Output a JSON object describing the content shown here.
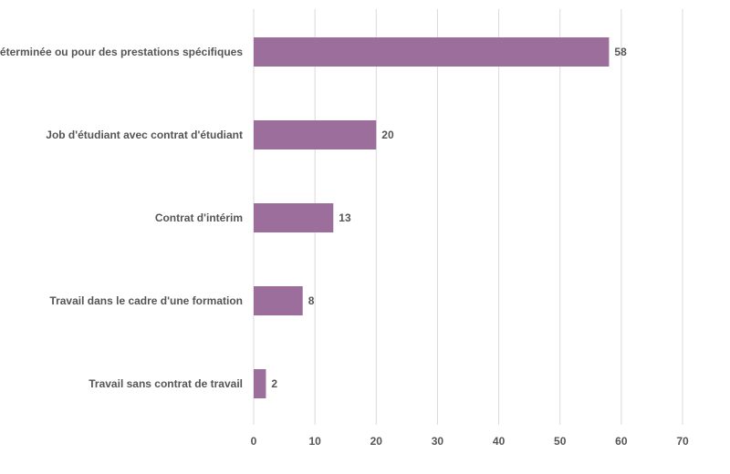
{
  "chart_data": {
    "type": "bar",
    "orientation": "horizontal",
    "categories": [
      "Durée déterminée ou pour des prestations spécifiques",
      "Job d'étudiant avec contrat d'étudiant",
      "Contrat d'intérim",
      "Travail dans le cadre d'une formation",
      "Travail sans contrat de travail"
    ],
    "values": [
      58,
      20,
      13,
      8,
      2
    ],
    "value_labels": [
      "58",
      "20",
      "13",
      "8",
      "2"
    ],
    "xlim": [
      0,
      70
    ],
    "x_ticks": [
      "0",
      "10",
      "20",
      "30",
      "40",
      "50",
      "60",
      "70"
    ],
    "grid": "vertical",
    "legend": "none",
    "colors": {
      "bar": "#9b6e9b",
      "grid": "#d9d9d9",
      "text": "#555555"
    }
  }
}
